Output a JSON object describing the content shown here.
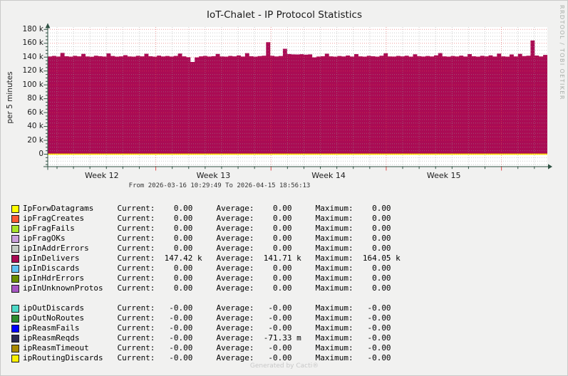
{
  "title": "IoT-Chalet - IP Protocol Statistics",
  "watermark": "RRDTOOL / TOBI OETIKER",
  "footer": "Generated by Cacti®",
  "chart_data": {
    "type": "area",
    "title": "IoT-Chalet - IP Protocol Statistics",
    "ylabel": "per 5 minutes",
    "x_range_label": "From 2026-03-16 10:29:49 To 2026-04-15 18:56:13",
    "x_tick_labels": [
      "Week 12",
      "Week 13",
      "Week 14",
      "Week 15"
    ],
    "y_ticks": [
      {
        "v": 0,
        "label": "0"
      },
      {
        "v": 20,
        "label": "20 k"
      },
      {
        "v": 40,
        "label": "40 k"
      },
      {
        "v": 60,
        "label": "60 k"
      },
      {
        "v": 80,
        "label": "80 k"
      },
      {
        "v": 100,
        "label": "100 k"
      },
      {
        "v": 120,
        "label": "120 k"
      },
      {
        "v": 140,
        "label": "140 k"
      },
      {
        "v": 160,
        "label": "160 k"
      },
      {
        "v": 180,
        "label": "180 k"
      }
    ],
    "ylim_thousands": [
      -18,
      185
    ],
    "grid": {
      "major_color": "#DE4A4A",
      "minor_color": "#999999",
      "zero_line_color": "#FFF000",
      "axis_color": "#2F5243"
    },
    "series": [
      {
        "name": "ipInDelivers",
        "color": "#AA0B54",
        "stats": {
          "current": "147.42 k",
          "average": "141.71 k",
          "maximum": "164.05 k"
        },
        "values_thousands": [
          141.0,
          141.8,
          140.9,
          146.2,
          141.3,
          140.8,
          141.9,
          141.2,
          144.8,
          141.0,
          140.6,
          142.1,
          141.4,
          140.9,
          145.5,
          141.6,
          140.8,
          141.2,
          142.8,
          141.0,
          140.7,
          141.9,
          141.1,
          144.9,
          141.3,
          140.8,
          142.2,
          141.0,
          141.6,
          140.9,
          141.8,
          145.2,
          141.1,
          139.8,
          133.0,
          139.6,
          141.2,
          141.8,
          140.9,
          141.4,
          144.6,
          141.0,
          140.7,
          141.8,
          141.2,
          142.4,
          140.9,
          145.8,
          141.3,
          140.8,
          141.5,
          142.0,
          161.5,
          141.9,
          141.0,
          141.6,
          152.0,
          144.5,
          144.0,
          143.8,
          144.2,
          143.6,
          144.0,
          139.6,
          140.9,
          141.3,
          145.0,
          141.1,
          140.8,
          141.7,
          141.0,
          142.3,
          140.9,
          144.3,
          141.2,
          140.7,
          141.9,
          141.3,
          140.8,
          142.1,
          145.6,
          141.0,
          140.9,
          141.8,
          141.1,
          142.0,
          140.8,
          144.1,
          141.4,
          140.9,
          141.7,
          141.0,
          142.5,
          145.9,
          141.2,
          140.8,
          141.6,
          141.0,
          142.2,
          140.9,
          144.4,
          141.3,
          140.7,
          141.9,
          141.1,
          142.6,
          140.9,
          145.1,
          141.2,
          140.8,
          143.9,
          141.0,
          144.7,
          141.5,
          142.0,
          164.0,
          142.3,
          141.0,
          143.2,
          147.4
        ]
      }
    ]
  },
  "legend": {
    "groups": [
      [
        {
          "label": "IpForwDatagrams",
          "color": "#FFFF00",
          "current": {
            "num": "0.00",
            "unit": ""
          },
          "average": {
            "num": "0.00",
            "unit": ""
          },
          "maximum": {
            "num": "0.00",
            "unit": ""
          }
        },
        {
          "label": "ipFragCreates",
          "color": "#FA5A35",
          "current": {
            "num": "0.00",
            "unit": ""
          },
          "average": {
            "num": "0.00",
            "unit": ""
          },
          "maximum": {
            "num": "0.00",
            "unit": ""
          }
        },
        {
          "label": "ipFragFails",
          "color": "#A8E32A",
          "current": {
            "num": "0.00",
            "unit": ""
          },
          "average": {
            "num": "0.00",
            "unit": ""
          },
          "maximum": {
            "num": "0.00",
            "unit": ""
          }
        },
        {
          "label": "ipFragOKs",
          "color": "#C9A0DC",
          "current": {
            "num": "0.00",
            "unit": ""
          },
          "average": {
            "num": "0.00",
            "unit": ""
          },
          "maximum": {
            "num": "0.00",
            "unit": ""
          }
        },
        {
          "label": "ipInAddrErrors",
          "color": "#C3CBC3",
          "current": {
            "num": "0.00",
            "unit": ""
          },
          "average": {
            "num": "0.00",
            "unit": ""
          },
          "maximum": {
            "num": "0.00",
            "unit": ""
          }
        },
        {
          "label": "ipInDelivers",
          "color": "#AA0B54",
          "current": {
            "num": "147.42",
            "unit": "k"
          },
          "average": {
            "num": "141.71",
            "unit": "k"
          },
          "maximum": {
            "num": "164.05",
            "unit": "k"
          }
        },
        {
          "label": "ipInDiscards",
          "color": "#5FC2F2",
          "current": {
            "num": "0.00",
            "unit": ""
          },
          "average": {
            "num": "0.00",
            "unit": ""
          },
          "maximum": {
            "num": "0.00",
            "unit": ""
          }
        },
        {
          "label": "ipInHdrErrors",
          "color": "#6A8E00",
          "current": {
            "num": "0.00",
            "unit": ""
          },
          "average": {
            "num": "0.00",
            "unit": ""
          },
          "maximum": {
            "num": "0.00",
            "unit": ""
          }
        },
        {
          "label": "ipInUnknownProtos",
          "color": "#A757C3",
          "current": {
            "num": "0.00",
            "unit": ""
          },
          "average": {
            "num": "0.00",
            "unit": ""
          },
          "maximum": {
            "num": "0.00",
            "unit": ""
          }
        }
      ],
      [
        {
          "label": "ipOutDiscards",
          "color": "#4DD9C7",
          "current": {
            "num": "-0.00",
            "unit": ""
          },
          "average": {
            "num": "-0.00",
            "unit": ""
          },
          "maximum": {
            "num": "-0.00",
            "unit": ""
          }
        },
        {
          "label": "ipOutNoRoutes",
          "color": "#2E8B2E",
          "current": {
            "num": "-0.00",
            "unit": ""
          },
          "average": {
            "num": "-0.00",
            "unit": ""
          },
          "maximum": {
            "num": "-0.00",
            "unit": ""
          }
        },
        {
          "label": "ipReasmFails",
          "color": "#0000FF",
          "current": {
            "num": "-0.00",
            "unit": ""
          },
          "average": {
            "num": "-0.00",
            "unit": ""
          },
          "maximum": {
            "num": "-0.00",
            "unit": ""
          }
        },
        {
          "label": "ipReasmReqds",
          "color": "#2B2A52",
          "current": {
            "num": "-0.00",
            "unit": ""
          },
          "average": {
            "num": "-71.33",
            "unit": "m"
          },
          "maximum": {
            "num": "-0.00",
            "unit": ""
          }
        },
        {
          "label": "ipReasmTimeout",
          "color": "#A98A00",
          "current": {
            "num": "-0.00",
            "unit": ""
          },
          "average": {
            "num": "-0.00",
            "unit": ""
          },
          "maximum": {
            "num": "-0.00",
            "unit": ""
          }
        },
        {
          "label": "ipRoutingDiscards",
          "color": "#FBF000",
          "current": {
            "num": "-0.00",
            "unit": ""
          },
          "average": {
            "num": "-0.00",
            "unit": ""
          },
          "maximum": {
            "num": "-0.00",
            "unit": ""
          }
        }
      ]
    ],
    "col_current": "Current:",
    "col_average": "Average:",
    "col_maximum": "Maximum:"
  }
}
